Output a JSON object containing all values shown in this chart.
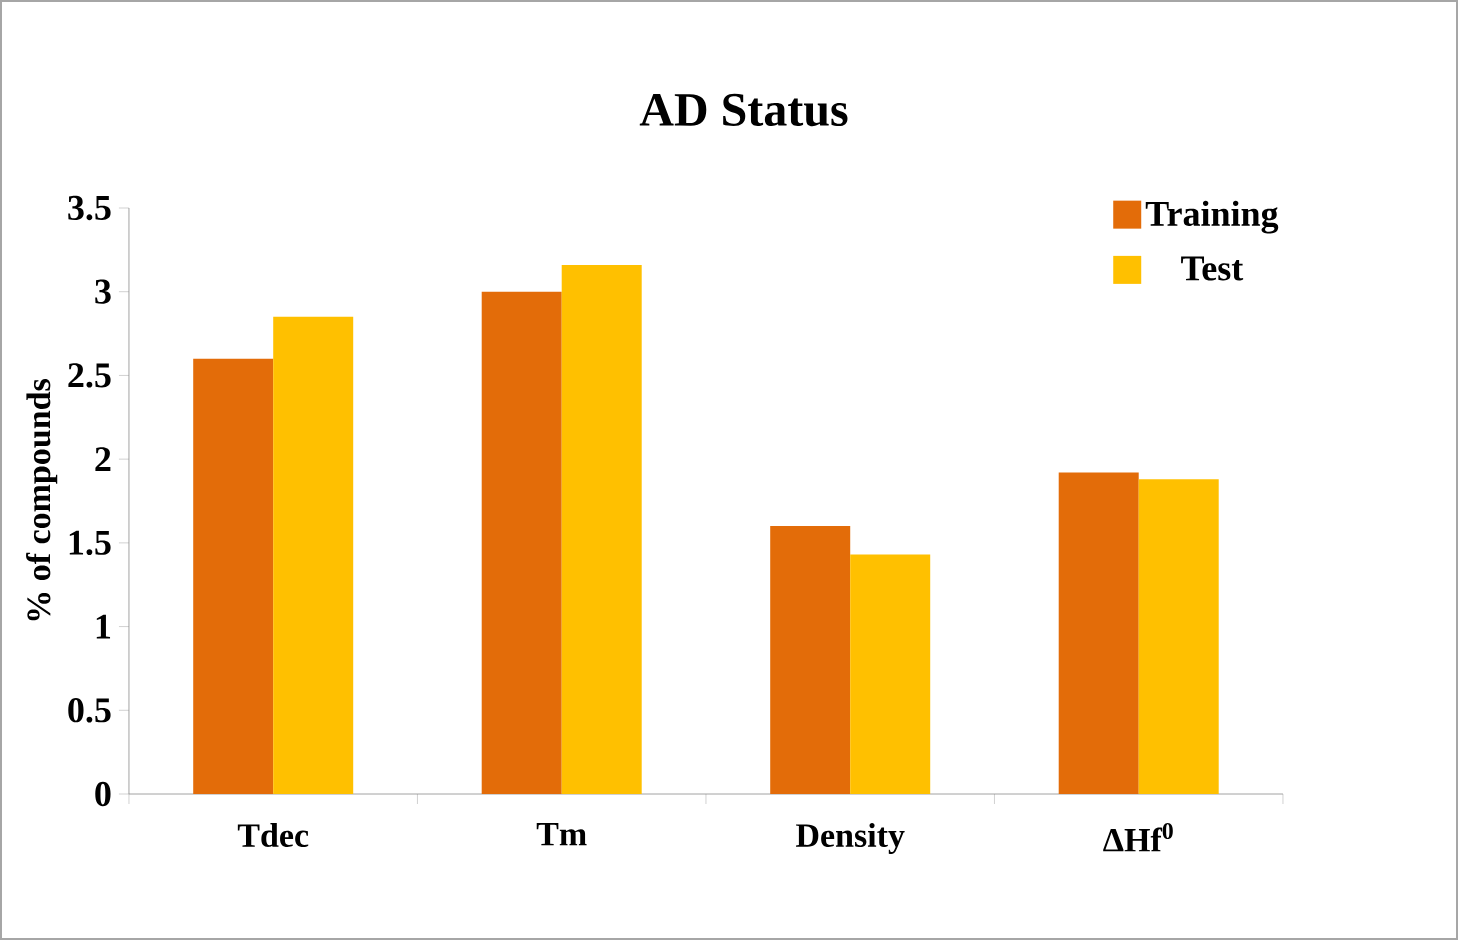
{
  "chart_data": {
    "type": "bar",
    "title": "AD Status",
    "ylabel": "% of compounds",
    "categories": [
      "Tdec",
      "Tm",
      "Density",
      "ΔHf$^{0}$"
    ],
    "series": [
      {
        "name": "Training",
        "color": "#e36c09",
        "values": [
          2.6,
          3.0,
          1.6,
          1.92
        ]
      },
      {
        "name": "Test",
        "color": "#ffc000",
        "values": [
          2.85,
          3.16,
          1.43,
          1.88
        ]
      }
    ],
    "ylim": [
      0,
      3.5
    ],
    "yticks": [
      0,
      0.5,
      1,
      1.5,
      2,
      2.5,
      3,
      3.5
    ],
    "legend": "top right"
  }
}
